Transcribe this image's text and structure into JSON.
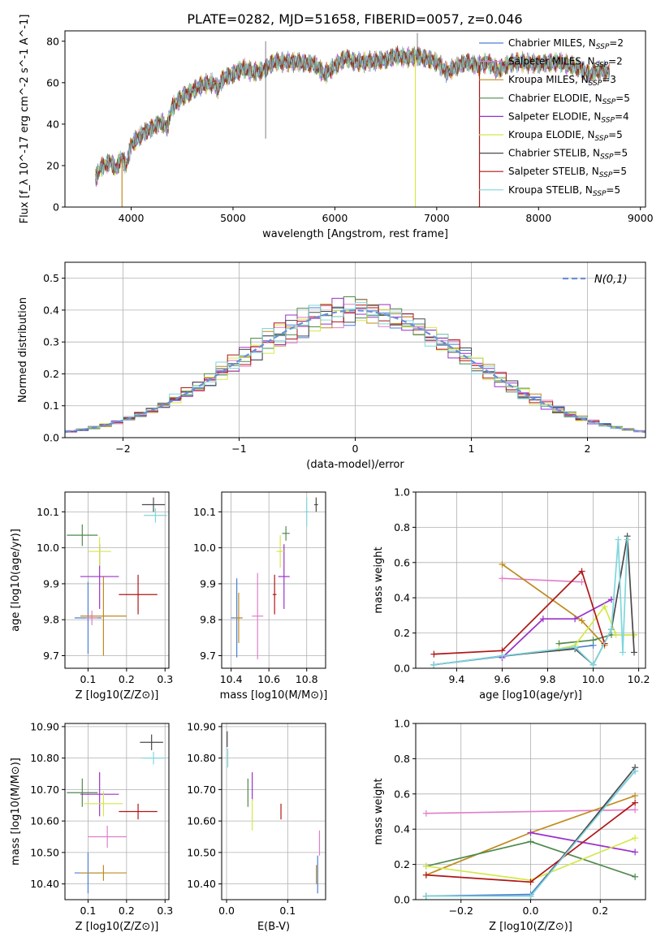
{
  "figure": {
    "title": "PLATE=0282, MJD=51658, FIBERID=0057, z=0.046"
  },
  "colors": {
    "Chabrier_MILES": "#4a7fd4",
    "Salpeter_MILES": "#e07ec8",
    "Kroupa_MILES": "#c08a1e",
    "Chabrier_ELODIE": "#4f8a4f",
    "Salpeter_ELODIE": "#9b30c8",
    "Kroupa_ELODIE": "#d4e84a",
    "Chabrier_STELIB": "#4a4a4a",
    "Salpeter_STELIB": "#b01616",
    "Kroupa_STELIB": "#7fd6dc",
    "normal_curve": "#6a8fd6",
    "grid": "#b0b0b0"
  },
  "chart_data": [
    {
      "id": "spectrum",
      "type": "line",
      "title": "PLATE=0282, MJD=51658, FIBERID=0057, z=0.046",
      "xlabel": "wavelength [Angstrom, rest frame]",
      "ylabel": "Flux [f_λ 10^-17 erg cm^-2 s^-1 A^-1]",
      "xlim": [
        3350,
        9050
      ],
      "ylim": [
        0,
        85
      ],
      "xticks": [
        4000,
        5000,
        6000,
        7000,
        8000,
        9000
      ],
      "yticks": [
        0,
        20,
        40,
        60,
        80
      ],
      "grid": false,
      "legend": "right",
      "legend_entries": [
        {
          "label": "Chabrier MILES, N",
          "sub": "SSP",
          "n": "=2",
          "color_key": "Chabrier_MILES"
        },
        {
          "label": "Salpeter MILES, N",
          "sub": "SSP",
          "n": "=2",
          "color_key": "Salpeter_MILES"
        },
        {
          "label": "Kroupa MILES, N",
          "sub": "SSP",
          "n": "=3",
          "color_key": "Kroupa_MILES"
        },
        {
          "label": "Chabrier ELODIE, N",
          "sub": "SSP",
          "n": "=5",
          "color_key": "Chabrier_ELODIE"
        },
        {
          "label": "Salpeter ELODIE, N",
          "sub": "SSP",
          "n": "=4",
          "color_key": "Salpeter_ELODIE"
        },
        {
          "label": "Kroupa ELODIE, N",
          "sub": "SSP",
          "n": "=5",
          "color_key": "Kroupa_ELODIE"
        },
        {
          "label": "Chabrier STELIB, N",
          "sub": "SSP",
          "n": "=5",
          "color_key": "Chabrier_STELIB"
        },
        {
          "label": "Salpeter STELIB, N",
          "sub": "SSP",
          "n": "=5",
          "color_key": "Salpeter_STELIB"
        },
        {
          "label": "Kroupa STELIB, N",
          "sub": "SSP",
          "n": "=5",
          "color_key": "Kroupa_STELIB"
        }
      ],
      "continuum": [
        [
          3650,
          14
        ],
        [
          3700,
          19
        ],
        [
          3800,
          22
        ],
        [
          3850,
          18
        ],
        [
          3900,
          24
        ],
        [
          3950,
          20
        ],
        [
          4000,
          30
        ],
        [
          4100,
          35
        ],
        [
          4200,
          38
        ],
        [
          4300,
          41
        ],
        [
          4350,
          38
        ],
        [
          4400,
          48
        ],
        [
          4500,
          53
        ],
        [
          4600,
          56
        ],
        [
          4700,
          59
        ],
        [
          4800,
          60
        ],
        [
          4850,
          57
        ],
        [
          4900,
          62
        ],
        [
          5000,
          64
        ],
        [
          5100,
          67
        ],
        [
          5200,
          65
        ],
        [
          5300,
          66
        ],
        [
          5400,
          70
        ],
        [
          5500,
          70
        ],
        [
          5600,
          70
        ],
        [
          5800,
          69
        ],
        [
          5900,
          64
        ],
        [
          6000,
          68
        ],
        [
          6100,
          72
        ],
        [
          6200,
          70
        ],
        [
          6300,
          70
        ],
        [
          6500,
          71
        ],
        [
          6600,
          73
        ],
        [
          6700,
          72
        ],
        [
          6800,
          73
        ],
        [
          7000,
          70
        ],
        [
          7100,
          65
        ],
        [
          7200,
          68
        ],
        [
          7300,
          70
        ],
        [
          7400,
          68
        ],
        [
          7500,
          70
        ],
        [
          7600,
          66
        ],
        [
          7700,
          69
        ],
        [
          7800,
          70
        ],
        [
          8000,
          69
        ],
        [
          8200,
          70
        ],
        [
          8400,
          67
        ],
        [
          8500,
          64
        ],
        [
          8600,
          66
        ],
        [
          8700,
          65
        ]
      ],
      "lines": [
        {
          "color_key": "Kroupa_MILES",
          "drop_at": 3910
        },
        {
          "color_key": "Kroupa_ELODIE",
          "drop_at": 6790
        },
        {
          "color_key": "Salpeter_STELIB",
          "drop_at": 7420
        }
      ]
    },
    {
      "id": "residuals",
      "type": "histogram",
      "xlabel": "(data-model)/error",
      "ylabel": "Normed distribution",
      "xlim": [
        -2.5,
        2.5
      ],
      "ylim": [
        0,
        0.55
      ],
      "xticks": [
        -2,
        -1,
        0,
        1,
        2
      ],
      "yticks": [
        0.0,
        0.1,
        0.2,
        0.3,
        0.4,
        0.5
      ],
      "grid": true,
      "legend": "top-right",
      "legend_label": "N(0,1)",
      "bin_width": 0.1
    },
    {
      "id": "age_vs_Z",
      "type": "errorbar",
      "xlabel": "Z [log10(Z/Z⊙)]",
      "ylabel": "age [log10(age/yr)]",
      "xlim": [
        0.04,
        0.31
      ],
      "ylim": [
        9.665,
        10.155
      ],
      "xticks": [
        0.1,
        0.2,
        0.3
      ],
      "yticks": [
        9.7,
        9.8,
        9.9,
        10.0,
        10.1
      ],
      "grid": true,
      "points": [
        {
          "c": "Chabrier_MILES",
          "x": 0.1,
          "xe": 0.035,
          "y": 9.805,
          "ye": 0.1
        },
        {
          "c": "Salpeter_MILES",
          "x": 0.11,
          "xe": 0.015,
          "y": 9.805,
          "ye": 0.02
        },
        {
          "c": "Kroupa_MILES",
          "x": 0.14,
          "xe": 0.06,
          "y": 9.81,
          "ye": 0.11
        },
        {
          "c": "Chabrier_ELODIE",
          "x": 0.085,
          "xe": 0.04,
          "y": 10.035,
          "ye": 0.03
        },
        {
          "c": "Salpeter_ELODIE",
          "x": 0.13,
          "xe": 0.05,
          "y": 9.92,
          "ye": 0.09
        },
        {
          "c": "Kroupa_ELODIE",
          "x": 0.13,
          "xe": 0.03,
          "y": 9.99,
          "ye": 0.04
        },
        {
          "c": "Chabrier_STELIB",
          "x": 0.27,
          "xe": 0.03,
          "y": 10.12,
          "ye": 0.02
        },
        {
          "c": "Salpeter_STELIB",
          "x": 0.23,
          "xe": 0.05,
          "y": 9.87,
          "ye": 0.055
        },
        {
          "c": "Kroupa_STELIB",
          "x": 0.275,
          "xe": 0.03,
          "y": 10.09,
          "ye": 0.02
        }
      ]
    },
    {
      "id": "age_vs_mass",
      "type": "errorbar",
      "xlabel": "mass [log10(M/M⊙)]",
      "ylabel": "",
      "xlim": [
        10.35,
        10.9
      ],
      "ylim": [
        9.665,
        10.155
      ],
      "xticks": [
        10.4,
        10.6,
        10.8
      ],
      "yticks": [
        9.7,
        9.8,
        9.9,
        10.0,
        10.1
      ],
      "grid": true,
      "points": [
        {
          "c": "Chabrier_MILES",
          "x": 10.43,
          "xe": 0.03,
          "y": 9.805,
          "ye": 0.11
        },
        {
          "c": "Salpeter_MILES",
          "x": 10.54,
          "xe": 0.03,
          "y": 9.81,
          "ye": 0.12
        },
        {
          "c": "Kroupa_MILES",
          "x": 10.44,
          "xe": 0.02,
          "y": 9.805,
          "ye": 0.07
        },
        {
          "c": "Chabrier_ELODIE",
          "x": 10.69,
          "xe": 0.02,
          "y": 10.04,
          "ye": 0.02
        },
        {
          "c": "Salpeter_ELODIE",
          "x": 10.68,
          "xe": 0.03,
          "y": 9.92,
          "ye": 0.09
        },
        {
          "c": "Kroupa_ELODIE",
          "x": 10.66,
          "xe": 0.02,
          "y": 9.99,
          "ye": 0.045
        },
        {
          "c": "Chabrier_STELIB",
          "x": 10.85,
          "xe": 0.01,
          "y": 10.12,
          "ye": 0.02
        },
        {
          "c": "Salpeter_STELIB",
          "x": 10.63,
          "xe": 0.01,
          "y": 9.87,
          "ye": 0.055
        },
        {
          "c": "Kroupa_STELIB",
          "x": 10.8,
          "xe": 0.01,
          "y": 10.1,
          "ye": 0.04
        }
      ]
    },
    {
      "id": "weight_vs_age",
      "type": "line",
      "xlabel": "age [log10(age/yr)]",
      "ylabel": "mass weight",
      "xlim": [
        9.22,
        10.23
      ],
      "ylim": [
        0,
        1.0
      ],
      "xticks": [
        9.4,
        9.6,
        9.8,
        10.0,
        10.2
      ],
      "yticks": [
        0.0,
        0.2,
        0.4,
        0.6,
        0.8,
        1.0
      ],
      "grid": true,
      "series": [
        {
          "c": "Chabrier_MILES",
          "x": [
            9.3,
            10.0
          ],
          "y": [
            0.02,
            0.13
          ]
        },
        {
          "c": "Salpeter_MILES",
          "x": [
            9.6,
            9.95
          ],
          "y": [
            0.51,
            0.49
          ]
        },
        {
          "c": "Kroupa_MILES",
          "x": [
            9.6,
            9.95,
            10.05
          ],
          "y": [
            0.59,
            0.27,
            0.13
          ]
        },
        {
          "c": "Chabrier_ELODIE",
          "x": [
            9.85,
            10.0,
            10.08,
            10.18
          ],
          "y": [
            0.14,
            0.16,
            0.19,
            0.19
          ]
        },
        {
          "c": "Salpeter_ELODIE",
          "x": [
            9.6,
            9.78,
            9.92,
            10.08
          ],
          "y": [
            0.06,
            0.28,
            0.28,
            0.39
          ]
        },
        {
          "c": "Kroupa_ELODIE",
          "x": [
            9.85,
            9.92,
            10.05,
            10.1,
            10.18
          ],
          "y": [
            0.11,
            0.13,
            0.35,
            0.19,
            0.19
          ]
        },
        {
          "c": "Chabrier_STELIB",
          "x": [
            9.3,
            9.6,
            9.92,
            10.0,
            10.08,
            10.15,
            10.18
          ],
          "y": [
            0.02,
            0.07,
            0.11,
            0.02,
            0.22,
            0.75,
            0.09
          ]
        },
        {
          "c": "Salpeter_STELIB",
          "x": [
            9.3,
            9.6,
            9.95,
            10.05
          ],
          "y": [
            0.08,
            0.1,
            0.55,
            0.14
          ]
        },
        {
          "c": "Kroupa_STELIB",
          "x": [
            9.3,
            9.6,
            9.92,
            10.0,
            10.08,
            10.11,
            10.13,
            10.15
          ],
          "y": [
            0.02,
            0.07,
            0.12,
            0.02,
            0.22,
            0.73,
            0.09,
            0.73
          ]
        }
      ]
    },
    {
      "id": "mass_vs_Z",
      "type": "errorbar",
      "xlabel": "Z [log10(Z/Z⊙)]",
      "ylabel": "mass [log10(M/M⊙)]",
      "xlim": [
        0.04,
        0.31
      ],
      "ylim": [
        10.35,
        10.91
      ],
      "xticks": [
        0.1,
        0.2,
        0.3
      ],
      "yticks": [
        10.4,
        10.5,
        10.6,
        10.7,
        10.8,
        10.9
      ],
      "grid": true,
      "points": [
        {
          "c": "Chabrier_MILES",
          "x": 0.1,
          "xe": 0.035,
          "y": 10.435,
          "ye": 0.065
        },
        {
          "c": "Salpeter_MILES",
          "x": 0.15,
          "xe": 0.05,
          "y": 10.55,
          "ye": 0.035
        },
        {
          "c": "Kroupa_MILES",
          "x": 0.14,
          "xe": 0.06,
          "y": 10.435,
          "ye": 0.025
        },
        {
          "c": "Chabrier_ELODIE",
          "x": 0.085,
          "xe": 0.04,
          "y": 10.69,
          "ye": 0.045
        },
        {
          "c": "Salpeter_ELODIE",
          "x": 0.13,
          "xe": 0.05,
          "y": 10.685,
          "ye": 0.07
        },
        {
          "c": "Kroupa_ELODIE",
          "x": 0.14,
          "xe": 0.05,
          "y": 10.655,
          "ye": 0.04
        },
        {
          "c": "Chabrier_STELIB",
          "x": 0.265,
          "xe": 0.03,
          "y": 10.85,
          "ye": 0.025
        },
        {
          "c": "Salpeter_STELIB",
          "x": 0.23,
          "xe": 0.05,
          "y": 10.63,
          "ye": 0.025
        },
        {
          "c": "Kroupa_STELIB",
          "x": 0.27,
          "xe": 0.03,
          "y": 10.8,
          "ye": 0.02
        }
      ]
    },
    {
      "id": "mass_vs_ebv",
      "type": "errorbar",
      "xlabel": "E(B-V)",
      "ylabel": "",
      "xlim": [
        -0.008,
        0.162
      ],
      "ylim": [
        10.35,
        10.91
      ],
      "xticks": [
        0.0,
        0.1
      ],
      "yticks": [
        10.4,
        10.5,
        10.6,
        10.7,
        10.8,
        10.9
      ],
      "grid": true,
      "points": [
        {
          "c": "Chabrier_MILES",
          "x": 0.149,
          "xe": 0,
          "y": 10.43,
          "ye": 0.06
        },
        {
          "c": "Salpeter_MILES",
          "x": 0.152,
          "xe": 0,
          "y": 10.53,
          "ye": 0.04
        },
        {
          "c": "Kroupa_MILES",
          "x": 0.147,
          "xe": 0,
          "y": 10.43,
          "ye": 0.03
        },
        {
          "c": "Chabrier_ELODIE",
          "x": 0.035,
          "xe": 0,
          "y": 10.69,
          "ye": 0.045
        },
        {
          "c": "Salpeter_ELODIE",
          "x": 0.042,
          "xe": 0,
          "y": 10.71,
          "ye": 0.045
        },
        {
          "c": "Kroupa_ELODIE",
          "x": 0.042,
          "xe": 0,
          "y": 10.62,
          "ye": 0.05
        },
        {
          "c": "Chabrier_STELIB",
          "x": 0.001,
          "xe": 0,
          "y": 10.86,
          "ye": 0.025
        },
        {
          "c": "Salpeter_STELIB",
          "x": 0.089,
          "xe": 0,
          "y": 10.63,
          "ye": 0.025
        },
        {
          "c": "Kroupa_STELIB",
          "x": 0.002,
          "xe": 0,
          "y": 10.8,
          "ye": 0.03
        }
      ]
    },
    {
      "id": "weight_vs_Z",
      "type": "line",
      "xlabel": "Z [log10(Z/Z⊙)]",
      "ylabel": "mass weight",
      "xlim": [
        -0.33,
        0.33
      ],
      "ylim": [
        0,
        1.0
      ],
      "xticks": [
        -0.2,
        0.0,
        0.2
      ],
      "yticks": [
        0.0,
        0.2,
        0.4,
        0.6,
        0.8,
        1.0
      ],
      "grid": true,
      "series": [
        {
          "c": "Chabrier_MILES",
          "x": [
            -0.3,
            0.0,
            0.3
          ],
          "y": [
            0.02,
            0.03,
            0.73
          ]
        },
        {
          "c": "Salpeter_MILES",
          "x": [
            -0.3,
            0.3
          ],
          "y": [
            0.49,
            0.51
          ]
        },
        {
          "c": "Kroupa_MILES",
          "x": [
            -0.3,
            0.0,
            0.3
          ],
          "y": [
            0.14,
            0.38,
            0.59
          ]
        },
        {
          "c": "Chabrier_ELODIE",
          "x": [
            -0.3,
            0.0,
            0.3
          ],
          "y": [
            0.19,
            0.33,
            0.13
          ]
        },
        {
          "c": "Salpeter_ELODIE",
          "x": [
            0.0,
            0.3
          ],
          "y": [
            0.38,
            0.27
          ]
        },
        {
          "c": "Kroupa_ELODIE",
          "x": [
            -0.3,
            0.0,
            0.3
          ],
          "y": [
            0.19,
            0.11,
            0.35
          ]
        },
        {
          "c": "Chabrier_STELIB",
          "x": [
            -0.3,
            0.0,
            0.3
          ],
          "y": [
            0.02,
            0.02,
            0.75
          ]
        },
        {
          "c": "Salpeter_STELIB",
          "x": [
            -0.3,
            0.0,
            0.3
          ],
          "y": [
            0.14,
            0.1,
            0.55
          ]
        },
        {
          "c": "Kroupa_STELIB",
          "x": [
            -0.3,
            0.0,
            0.3
          ],
          "y": [
            0.02,
            0.02,
            0.73
          ]
        }
      ]
    }
  ]
}
